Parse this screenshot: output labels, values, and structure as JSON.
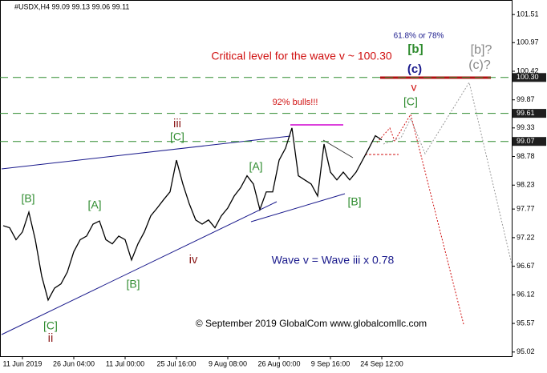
{
  "chart_data": {
    "type": "line",
    "title": "#USDX,H4  99.09 99.13 99.06 99.11",
    "categories": [
      null,
      null,
      null,
      "11 Jun 2019",
      null,
      null,
      null,
      null,
      null,
      null,
      null,
      "26 Jun 04:00",
      null,
      null,
      null,
      null,
      null,
      null,
      null,
      "11 Jul 00:00",
      null,
      null,
      null,
      null,
      null,
      null,
      null,
      "25 Jul 16:00",
      null,
      null,
      null,
      null,
      null,
      null,
      null,
      "9 Aug 08:00",
      null,
      null,
      null,
      null,
      null,
      null,
      null,
      "26 Aug 00:00",
      null,
      null,
      null,
      null,
      null,
      null,
      null,
      "9 Sep 16:00",
      null,
      null,
      null,
      null,
      null,
      null,
      null,
      "24 Sep 12:00"
    ],
    "values": [
      97.45,
      97.41,
      97.18,
      97.33,
      97.71,
      97.18,
      96.48,
      96.02,
      96.25,
      96.33,
      96.56,
      96.95,
      97.18,
      97.25,
      97.48,
      97.54,
      97.18,
      97.1,
      97.25,
      97.18,
      96.79,
      97.1,
      97.33,
      97.64,
      97.79,
      97.95,
      98.1,
      98.71,
      98.25,
      97.87,
      97.56,
      97.48,
      97.56,
      97.41,
      97.64,
      97.79,
      98.02,
      98.18,
      98.41,
      98.25,
      97.76,
      98.1,
      98.1,
      98.71,
      98.94,
      99.33,
      98.41,
      98.33,
      98.25,
      98.02,
      99.02,
      98.48,
      98.33,
      98.48,
      98.33,
      98.48,
      98.71,
      98.94,
      99.18,
      99.1
    ],
    "color": "#000000",
    "ylim": [
      94.94,
      101.79
    ],
    "yticks": [
      101.51,
      100.97,
      100.42,
      99.87,
      99.33,
      98.78,
      98.23,
      97.77,
      97.22,
      96.67,
      96.12,
      95.57,
      95.02
    ],
    "grid": false,
    "levels": [
      {
        "value": 100.3,
        "label": "100.30"
      },
      {
        "value": 99.61,
        "label": "99.61"
      },
      {
        "value": 99.07,
        "label": "99.07"
      }
    ],
    "level_color": "#2e8b2e",
    "annotations": [
      "[B]",
      "[A]",
      "[B]",
      "[C]",
      "ii",
      "iii",
      "[C]",
      "iv",
      "[A]",
      "[B]",
      "v",
      "[C]",
      "92% bulls!!!",
      "Critical level for the wave v ~ 100.30",
      "61.8% or 78%",
      "[b]",
      "(c)",
      "[b]?",
      "(c)?",
      "Wave v = Wave  iii x 0.78",
      "© September 2019 GlobalCom www.globalcomllc.com"
    ]
  }
}
